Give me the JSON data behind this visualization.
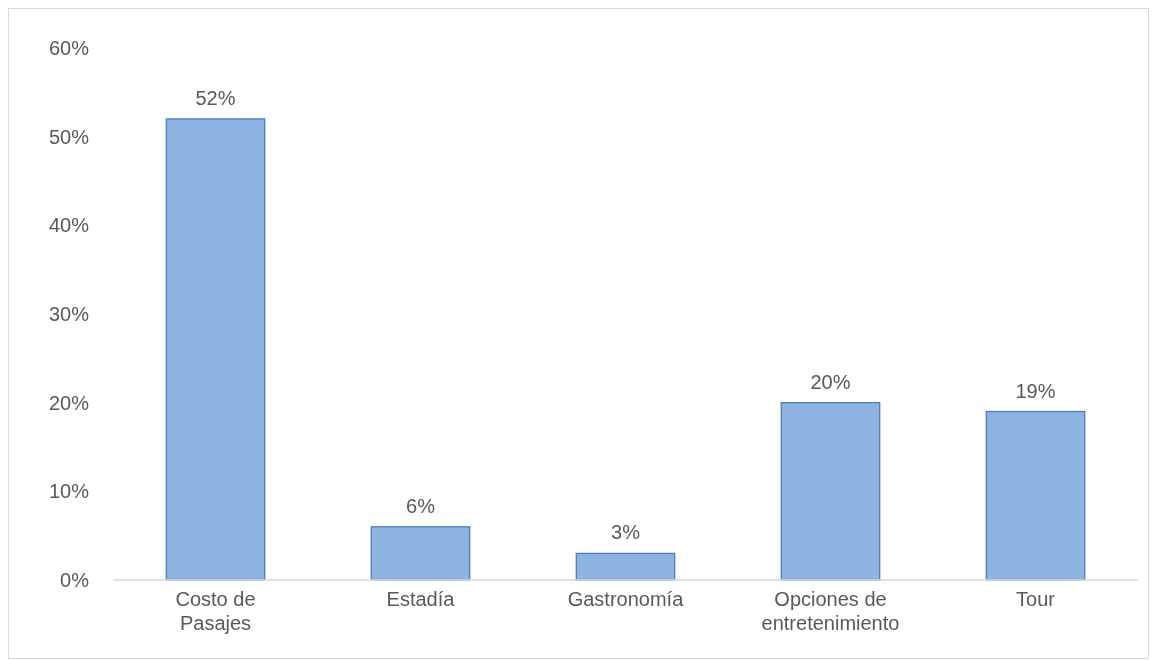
{
  "chart_data": {
    "type": "bar",
    "categories": [
      "Costo de Pasajes",
      "Estadía",
      "Gastronomía",
      "Opciones de entretenimiento",
      "Tour"
    ],
    "values": [
      52,
      6,
      3,
      20,
      19
    ],
    "color": "#8db3e2",
    "ylim": [
      0,
      60
    ],
    "yticks": [
      {
        "value": 0,
        "label": "0%"
      },
      {
        "value": 10,
        "label": "10%"
      },
      {
        "value": 20,
        "label": "20%"
      },
      {
        "value": 30,
        "label": "30%"
      },
      {
        "value": 40,
        "label": "40%"
      },
      {
        "value": 50,
        "label": "50%"
      },
      {
        "value": 60,
        "label": "60%"
      }
    ],
    "value_labels": [
      "52%",
      "6%",
      "3%",
      "20%",
      "19%"
    ]
  }
}
